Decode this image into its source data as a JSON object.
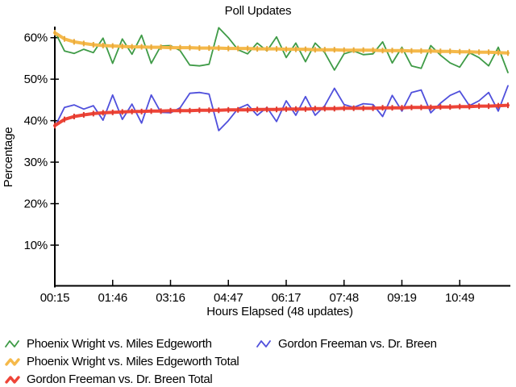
{
  "chart_data": {
    "type": "line",
    "title": "Poll Updates",
    "xlabel": "Hours Elapsed (48 updates)",
    "ylabel": "Percentage",
    "x_tick_labels": [
      "00:15",
      "01:46",
      "03:16",
      "04:47",
      "06:17",
      "07:48",
      "09:19",
      "10:49"
    ],
    "x_tick_indices": [
      0,
      6,
      12,
      18,
      24,
      30,
      36,
      42
    ],
    "num_points": 48,
    "y_ticks": [
      10,
      20,
      30,
      40,
      50,
      60
    ],
    "y_tick_suffix": "%",
    "ylim": [
      0,
      62
    ],
    "grid": false,
    "legend_position": "bottom-left",
    "axis_color": "#000000",
    "series": [
      {
        "name": "Phoenix Wright vs. Miles Edgeworth",
        "color": "#3f9b47",
        "width": 1.8,
        "joint_color": null,
        "values": [
          61.5,
          56.8,
          56.2,
          57.2,
          56.4,
          59.9,
          53.8,
          59.7,
          56.0,
          60.6,
          53.8,
          58.0,
          58.1,
          56.9,
          53.4,
          53.2,
          53.6,
          62.4,
          60.0,
          57.1,
          56.1,
          58.7,
          56.8,
          60.2,
          55.2,
          58.7,
          54.2,
          58.7,
          56.4,
          52.2,
          56.1,
          56.8,
          55.9,
          56.1,
          59.0,
          53.9,
          57.7,
          53.2,
          52.6,
          58.1,
          55.8,
          53.9,
          52.9,
          56.4,
          55.2,
          53.2,
          57.7,
          51.6
        ]
      },
      {
        "name": "Gordon Freeman vs. Dr. Breen",
        "color": "#5050dc",
        "width": 1.8,
        "joint_color": null,
        "values": [
          38.5,
          43.2,
          43.8,
          42.8,
          43.6,
          40.1,
          46.2,
          40.3,
          44.0,
          39.4,
          46.2,
          42.0,
          41.9,
          43.1,
          46.6,
          46.8,
          46.4,
          37.6,
          40.0,
          42.9,
          43.9,
          41.3,
          43.2,
          39.8,
          44.8,
          41.3,
          45.8,
          41.3,
          43.6,
          47.8,
          43.9,
          43.2,
          44.1,
          43.9,
          41.0,
          46.1,
          42.3,
          46.8,
          47.4,
          41.9,
          44.2,
          46.1,
          47.1,
          43.6,
          44.8,
          46.8,
          42.3,
          48.4
        ]
      },
      {
        "name": "Phoenix Wright vs. Miles Edgeworth Total",
        "color": "#f5b94a",
        "width": 4,
        "joint_color": "#e8a93c",
        "values": [
          61.2,
          59.7,
          59.0,
          58.6,
          58.3,
          58.1,
          58.0,
          57.9,
          57.8,
          57.8,
          57.7,
          57.7,
          57.6,
          57.6,
          57.6,
          57.5,
          57.5,
          57.5,
          57.4,
          57.4,
          57.4,
          57.3,
          57.3,
          57.3,
          57.2,
          57.2,
          57.2,
          57.1,
          57.1,
          57.1,
          57.0,
          57.0,
          57.0,
          57.0,
          56.9,
          56.9,
          56.9,
          56.8,
          56.8,
          56.8,
          56.7,
          56.7,
          56.6,
          56.6,
          56.5,
          56.5,
          56.4,
          56.3
        ]
      },
      {
        "name": "Gordon Freeman vs. Dr. Breen Total",
        "color": "#ee4437",
        "width": 4,
        "joint_color": "#dd3a30",
        "values": [
          38.8,
          40.3,
          41.0,
          41.4,
          41.7,
          41.9,
          42.0,
          42.1,
          42.2,
          42.2,
          42.3,
          42.3,
          42.4,
          42.4,
          42.4,
          42.5,
          42.5,
          42.5,
          42.6,
          42.6,
          42.6,
          42.7,
          42.7,
          42.7,
          42.8,
          42.8,
          42.8,
          42.9,
          42.9,
          42.9,
          43.0,
          43.0,
          43.0,
          43.0,
          43.1,
          43.1,
          43.1,
          43.2,
          43.2,
          43.2,
          43.3,
          43.3,
          43.4,
          43.4,
          43.5,
          43.5,
          43.6,
          43.7
        ]
      }
    ]
  }
}
